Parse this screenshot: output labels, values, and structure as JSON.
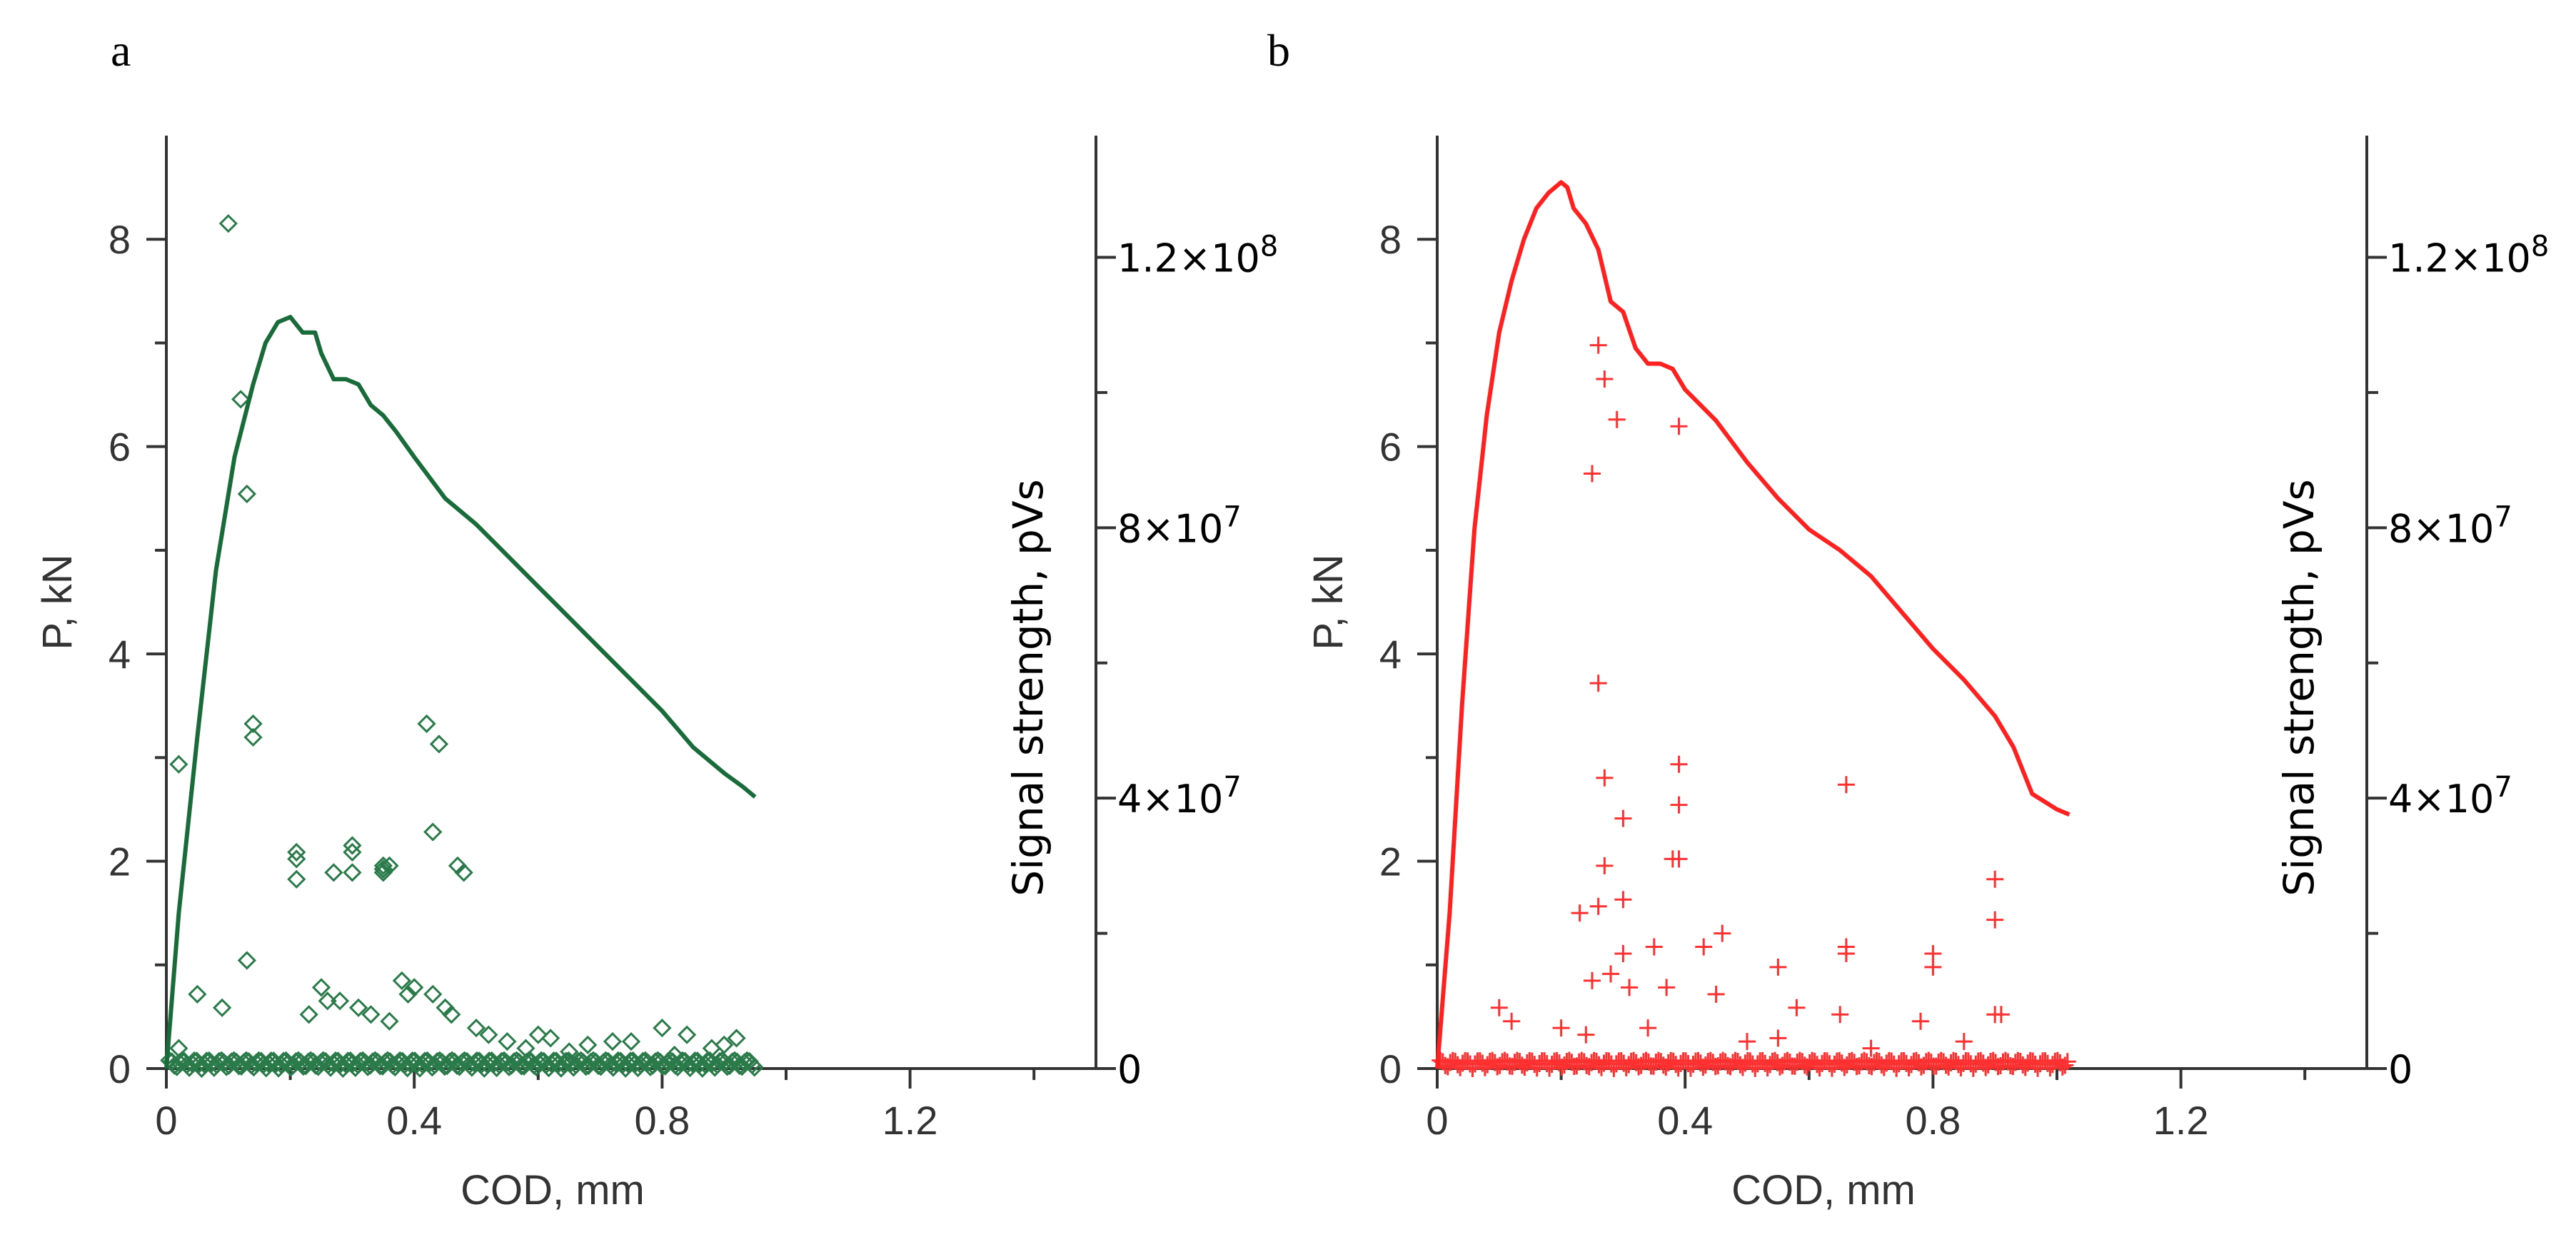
{
  "chart_data": [
    {
      "type": "line+scatter",
      "panel_label": "a",
      "xlabel": "COD, mm",
      "ylabel": "P, kN",
      "y2label": "Signal strength, pVs",
      "xlim": [
        0,
        1.5
      ],
      "ylim": [
        0,
        9
      ],
      "y2lim": [
        0,
        138000000
      ],
      "x_ticks": [
        0,
        0.4,
        0.8,
        1.2
      ],
      "x_tick_labels": [
        "0",
        "0.4",
        "0.8",
        "1.2"
      ],
      "x_minor_ticks": [
        0.2,
        0.6,
        1.0,
        1.4
      ],
      "y_ticks": [
        0,
        2,
        4,
        6,
        8
      ],
      "y_tick_labels": [
        "0",
        "2",
        "4",
        "6",
        "8"
      ],
      "y_minor_ticks": [
        1,
        3,
        5,
        7
      ],
      "y2_ticks": [
        0,
        40000000,
        80000000,
        120000000
      ],
      "y2_tick_labels": [
        "0",
        "4×10⁷",
        "8×10⁷",
        "1.2×10⁸"
      ],
      "y2_minor_ticks": [
        20000000,
        60000000,
        100000000
      ],
      "line_color": "#1a6b3a",
      "marker_color": "#2a7a4a",
      "marker": "diamond",
      "line": {
        "x": [
          0,
          0.02,
          0.05,
          0.08,
          0.11,
          0.14,
          0.16,
          0.18,
          0.2,
          0.22,
          0.24,
          0.25,
          0.27,
          0.29,
          0.31,
          0.33,
          0.35,
          0.37,
          0.4,
          0.45,
          0.5,
          0.55,
          0.6,
          0.65,
          0.7,
          0.75,
          0.8,
          0.85,
          0.9,
          0.93,
          0.95
        ],
        "y": [
          0,
          1.5,
          3.2,
          4.8,
          5.9,
          6.6,
          7.0,
          7.2,
          7.25,
          7.1,
          7.1,
          6.9,
          6.65,
          6.65,
          6.6,
          6.4,
          6.3,
          6.15,
          5.9,
          5.5,
          5.25,
          4.95,
          4.65,
          4.35,
          4.05,
          3.75,
          3.45,
          3.1,
          2.85,
          2.72,
          2.62
        ]
      },
      "signal": {
        "x": [
          0.02,
          0.1,
          0.12,
          0.13,
          0.14,
          0.14,
          0.21,
          0.21,
          0.27,
          0.3,
          0.3,
          0.3,
          0.35,
          0.35,
          0.35,
          0.36,
          0.42,
          0.43,
          0.44,
          0.47,
          0.48,
          0.21,
          0.13,
          0.05,
          0.09,
          0.02,
          0.25,
          0.28,
          0.33,
          0.38,
          0.4,
          0.43,
          0.45,
          0.5,
          0.55,
          0.6,
          0.62,
          0.68,
          0.72,
          0.8,
          0.84,
          0.88,
          0.92,
          0.23,
          0.26,
          0.31,
          0.36,
          0.39,
          0.46,
          0.52,
          0.58,
          0.65,
          0.75,
          0.82,
          0.9
        ],
        "y": [
          45000000,
          125000000,
          99000000,
          85000000,
          51000000,
          49000000,
          32000000,
          31000000,
          29000000,
          33000000,
          32000000,
          29000000,
          30000000,
          29500000,
          29000000,
          30000000,
          51000000,
          35000000,
          48000000,
          30000000,
          29000000,
          28000000,
          16000000,
          11000000,
          9000000,
          3000000,
          12000000,
          10000000,
          8000000,
          13000000,
          12000000,
          11000000,
          9000000,
          6000000,
          4000000,
          5000000,
          4500000,
          3500000,
          4000000,
          6000000,
          5000000,
          3000000,
          4500000,
          8000000,
          10000000,
          9000000,
          7000000,
          11000000,
          8000000,
          5000000,
          3000000,
          2500000,
          4000000,
          2000000,
          3500000
        ]
      }
    },
    {
      "type": "line+scatter",
      "panel_label": "b",
      "xlabel": "COD, mm",
      "ylabel": "P, kN",
      "y2label": "Signal strength, pVs",
      "xlim": [
        0,
        1.5
      ],
      "ylim": [
        0,
        9
      ],
      "y2lim": [
        0,
        138000000
      ],
      "x_ticks": [
        0,
        0.4,
        0.8,
        1.2
      ],
      "x_tick_labels": [
        "0",
        "0.4",
        "0.8",
        "1.2"
      ],
      "x_minor_ticks": [
        0.2,
        0.6,
        1.0,
        1.4
      ],
      "y_ticks": [
        0,
        2,
        4,
        6,
        8
      ],
      "y_tick_labels": [
        "0",
        "2",
        "4",
        "6",
        "8"
      ],
      "y_minor_ticks": [
        1,
        3,
        5,
        7
      ],
      "y2_ticks": [
        0,
        40000000,
        80000000,
        120000000
      ],
      "y2_tick_labels": [
        "0",
        "4×10⁷",
        "8×10⁷",
        "1.2×10⁸"
      ],
      "y2_minor_ticks": [
        20000000,
        60000000,
        100000000
      ],
      "line_color": "#ff2020",
      "marker_color": "#ff3030",
      "marker": "plus",
      "line": {
        "x": [
          0,
          0.02,
          0.04,
          0.06,
          0.08,
          0.1,
          0.12,
          0.14,
          0.16,
          0.18,
          0.2,
          0.21,
          0.22,
          0.24,
          0.26,
          0.28,
          0.3,
          0.32,
          0.34,
          0.36,
          0.38,
          0.4,
          0.45,
          0.5,
          0.55,
          0.6,
          0.65,
          0.7,
          0.75,
          0.8,
          0.85,
          0.9,
          0.93,
          0.96,
          1.0,
          1.02
        ],
        "y": [
          0,
          1.5,
          3.5,
          5.2,
          6.3,
          7.1,
          7.6,
          8.0,
          8.3,
          8.45,
          8.55,
          8.5,
          8.3,
          8.15,
          7.9,
          7.4,
          7.3,
          6.95,
          6.8,
          6.8,
          6.75,
          6.55,
          6.25,
          5.85,
          5.5,
          5.2,
          5.0,
          4.75,
          4.4,
          4.05,
          3.75,
          3.4,
          3.1,
          2.65,
          2.5,
          2.45
        ]
      },
      "signal": {
        "x": [
          0.26,
          0.27,
          0.29,
          0.25,
          0.39,
          0.26,
          0.27,
          0.39,
          0.39,
          0.66,
          0.3,
          0.27,
          0.38,
          0.39,
          0.9,
          0.9,
          0.3,
          0.23,
          0.26,
          0.3,
          0.35,
          0.43,
          0.46,
          0.55,
          0.66,
          0.66,
          0.8,
          0.8,
          0.25,
          0.28,
          0.31,
          0.37,
          0.45,
          0.58,
          0.65,
          0.78,
          0.9,
          0.91,
          0.1,
          0.12,
          0.2,
          0.24,
          0.34,
          0.5,
          0.55,
          0.7,
          0.85
        ],
        "y": [
          107000000,
          102000000,
          96000000,
          88000000,
          95000000,
          57000000,
          43000000,
          45000000,
          39000000,
          42000000,
          37000000,
          30000000,
          31000000,
          31000000,
          28000000,
          22000000,
          25000000,
          23000000,
          24000000,
          17000000,
          18000000,
          18000000,
          20000000,
          15000000,
          18000000,
          17000000,
          17000000,
          15000000,
          13000000,
          14000000,
          12000000,
          12000000,
          11000000,
          9000000,
          8000000,
          7000000,
          8000000,
          8000000,
          9000000,
          7000000,
          6000000,
          5000000,
          6000000,
          4000000,
          4500000,
          3000000,
          4000000
        ]
      }
    }
  ]
}
